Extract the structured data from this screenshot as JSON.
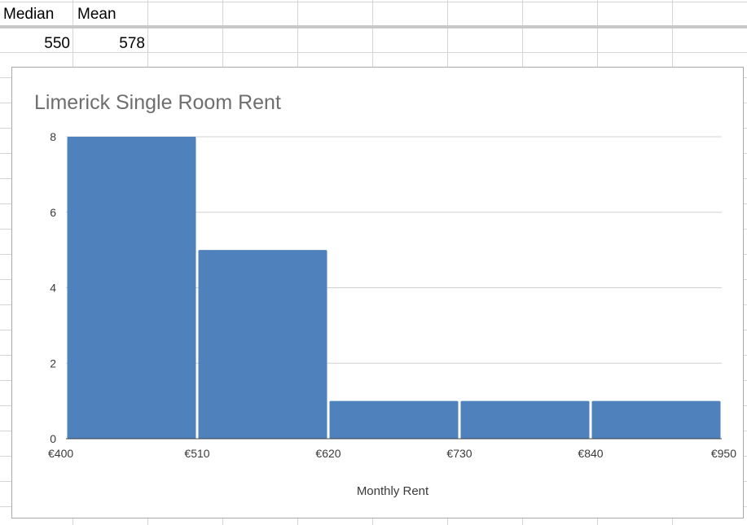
{
  "sheet": {
    "headers": [
      "Median",
      "Mean"
    ],
    "values": [
      "550",
      "578"
    ]
  },
  "chart_data": {
    "type": "bar",
    "title": "Limerick Single Room Rent",
    "xlabel": "Monthly Rent",
    "ylabel": "",
    "bin_edges": [
      "€400",
      "€510",
      "€620",
      "€730",
      "€840",
      "€950"
    ],
    "categories": [
      "€400–€510",
      "€510–€620",
      "€620–€730",
      "€730–€840",
      "€840–€950"
    ],
    "values": [
      8,
      5,
      1,
      1,
      1
    ],
    "yticks": [
      "0",
      "2",
      "4",
      "6",
      "8"
    ],
    "ylim": [
      0,
      8
    ],
    "grid": true,
    "bar_color": "#4f81bd",
    "gridline_color": "#d0d0d0"
  }
}
